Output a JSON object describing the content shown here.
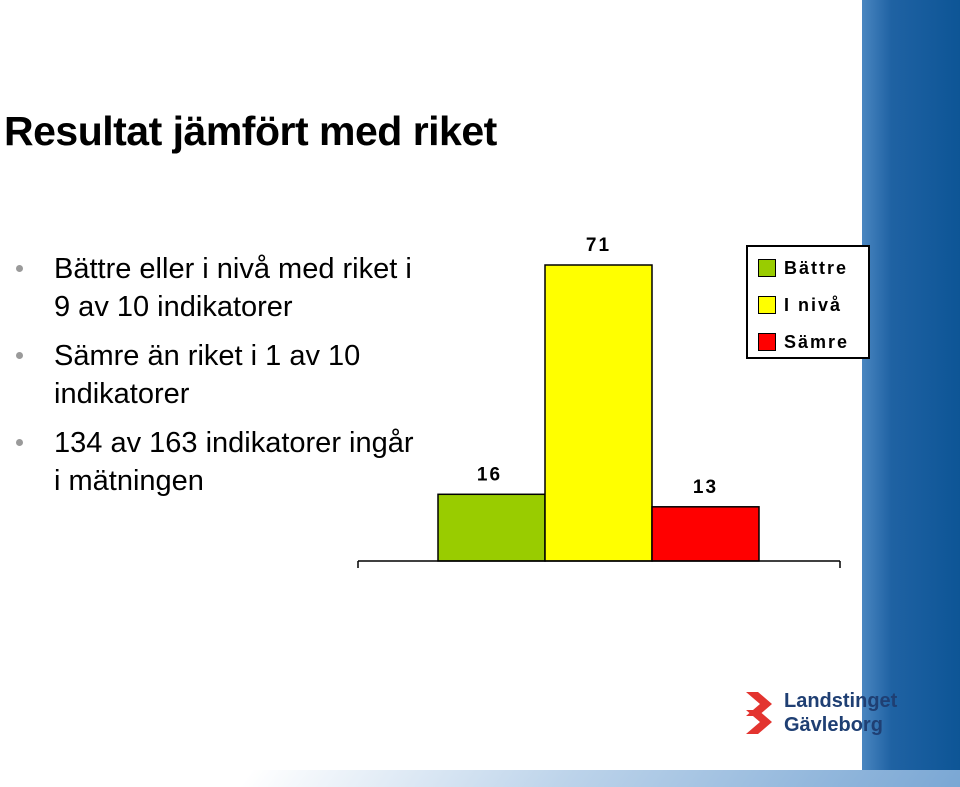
{
  "slide": {
    "title": "Resultat jämfört med riket",
    "bullets": [
      "Bättre eller i nivå med riket i 9 av 10 indikatorer",
      "Sämre än riket i 1 av 10 indikatorer",
      "134 av 163 indikatorer ingår i mätningen"
    ]
  },
  "logo": {
    "line1": "Landstinget",
    "line2": "Gävleborg",
    "colors": [
      "#e3342f",
      "#1f3f73"
    ]
  },
  "chart_data": {
    "type": "bar",
    "categories": [
      "Bättre",
      "I nivå",
      "Sämre"
    ],
    "values": [
      16,
      71,
      13
    ],
    "colors": [
      "#99cc00",
      "#ffff00",
      "#ff0000"
    ],
    "legend": {
      "position": "top-right",
      "entries": [
        "Bättre",
        "I nivå",
        "Sämre"
      ]
    },
    "ylim": [
      0,
      71
    ],
    "grid": false
  }
}
